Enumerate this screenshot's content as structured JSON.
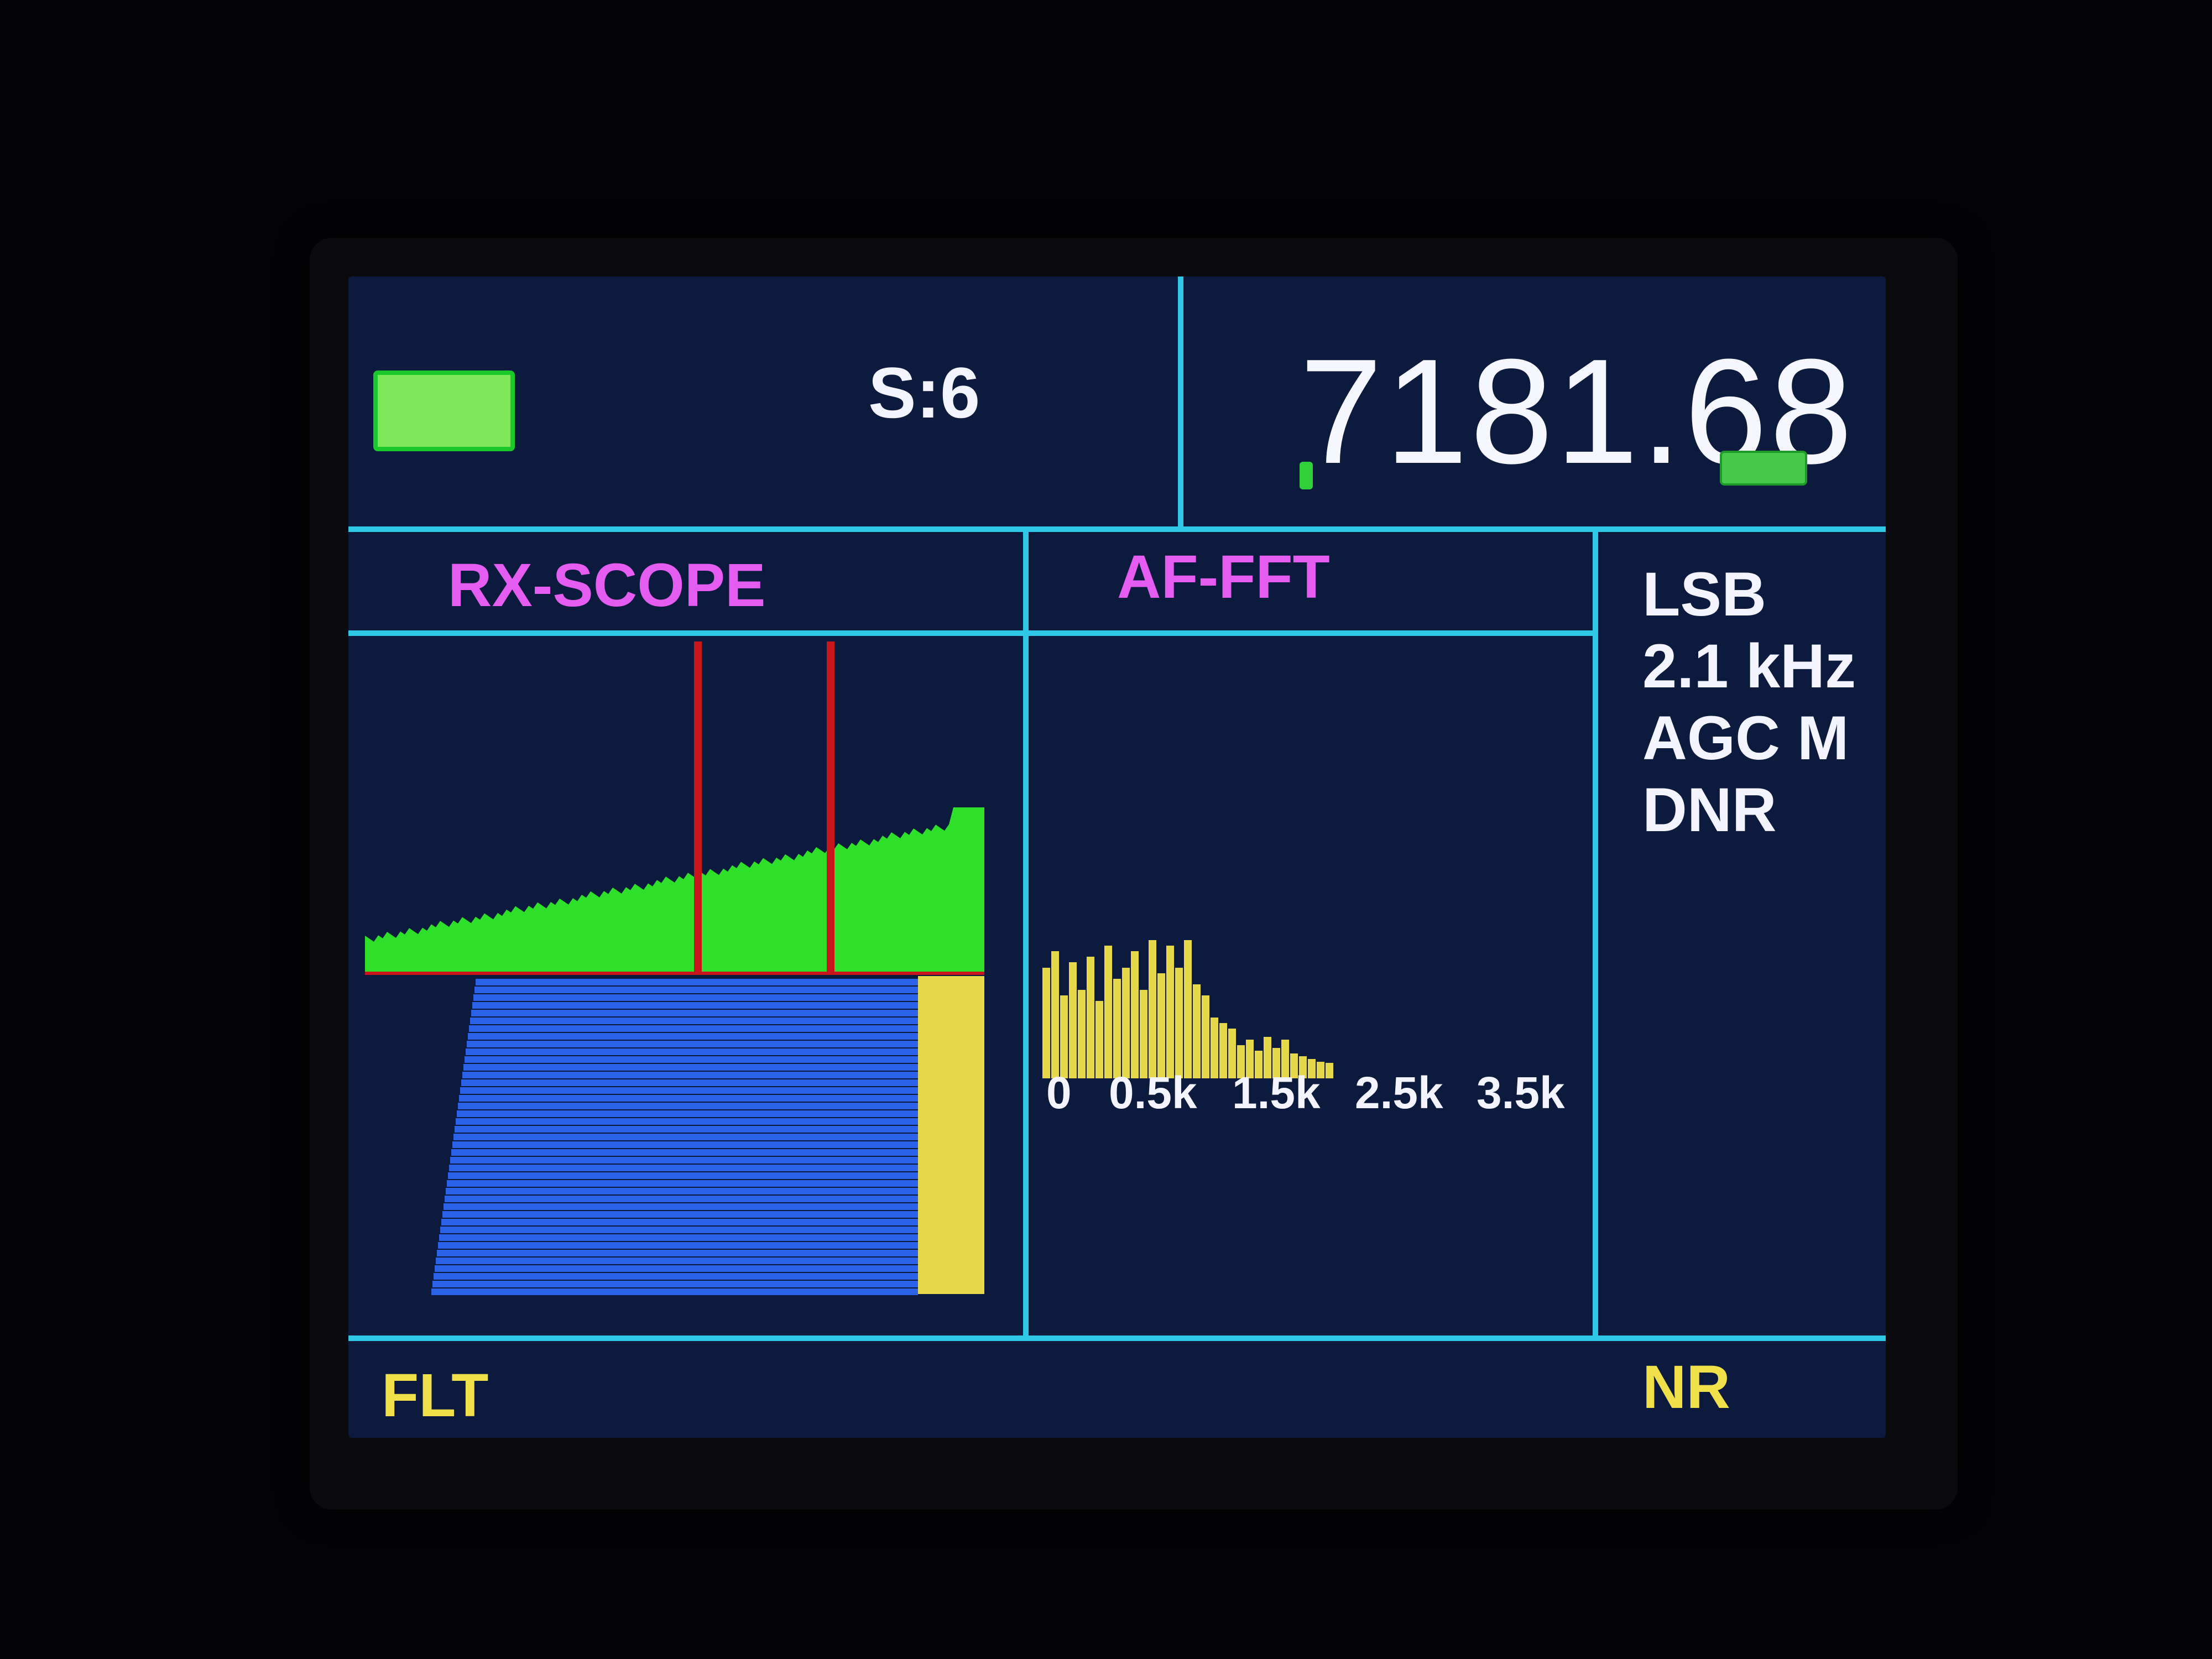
{
  "header": {
    "s_meter": "S:6",
    "frequency": "7181.68"
  },
  "panels": {
    "scope_title": "RX-SCOPE",
    "fft_title": "AF-FFT"
  },
  "fft_axis": {
    "ticks": [
      "0",
      "0.5k",
      "1.5k",
      "2.5k",
      "3.5k"
    ]
  },
  "sidebar": {
    "mode": "LSB",
    "bandwidth": "2.1 kHz",
    "agc": "AGC M",
    "dnr": "DNR"
  },
  "footer": {
    "left_label": "FLT",
    "right_label": "NR"
  },
  "colors": {
    "screen_bg": "#0c1a3e",
    "divider": "#2ec8e6",
    "scope_spectrum": "#2fe02a",
    "passband_marker": "#c8161c",
    "waterfall": "#2a63e8",
    "fft_bars": "#e6d84a",
    "title": "#e45cf0",
    "softkey": "#f0e04a"
  },
  "icons": {
    "signal_status": "green-status-indicator",
    "tuning_step": "green-step-indicator"
  }
}
